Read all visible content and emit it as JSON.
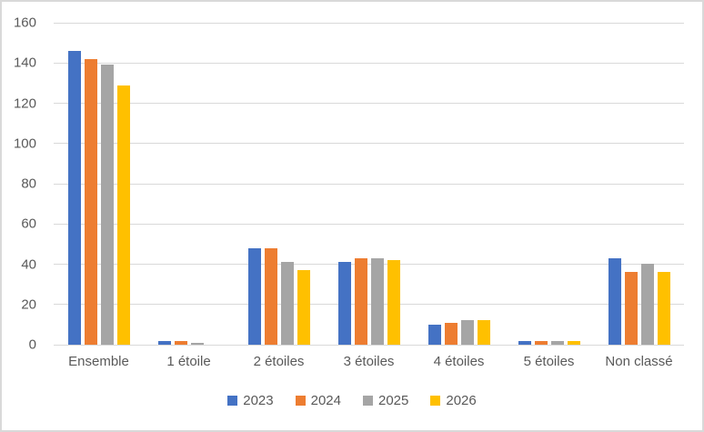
{
  "chart_data": {
    "type": "bar",
    "title": "",
    "xlabel": "",
    "ylabel": "",
    "categories": [
      "Ensemble",
      "1 étoile",
      "2 étoiles",
      "3 étoiles",
      "4 étoiles",
      "5 étoiles",
      "Non classé"
    ],
    "series": [
      {
        "name": "2023",
        "color": "#4472C4",
        "values": [
          146,
          2,
          48,
          41,
          10,
          2,
          43
        ]
      },
      {
        "name": "2024",
        "color": "#ED7D31",
        "values": [
          142,
          2,
          48,
          43,
          11,
          2,
          36
        ]
      },
      {
        "name": "2025",
        "color": "#A5A5A5",
        "values": [
          139,
          1,
          41,
          43,
          12,
          2,
          40
        ]
      },
      {
        "name": "2026",
        "color": "#FFC000",
        "values": [
          129,
          0,
          37,
          42,
          12,
          2,
          36
        ]
      }
    ],
    "ylim": [
      0,
      160
    ],
    "yticks": [
      0,
      20,
      40,
      60,
      80,
      100,
      120,
      140,
      160
    ],
    "grid": true,
    "legend_position": "bottom"
  },
  "style": {
    "text_color": "#595959",
    "gridline_color": "#d9d9d9",
    "frame_border_color": "#d9d9d9",
    "background_color": "#ffffff"
  }
}
